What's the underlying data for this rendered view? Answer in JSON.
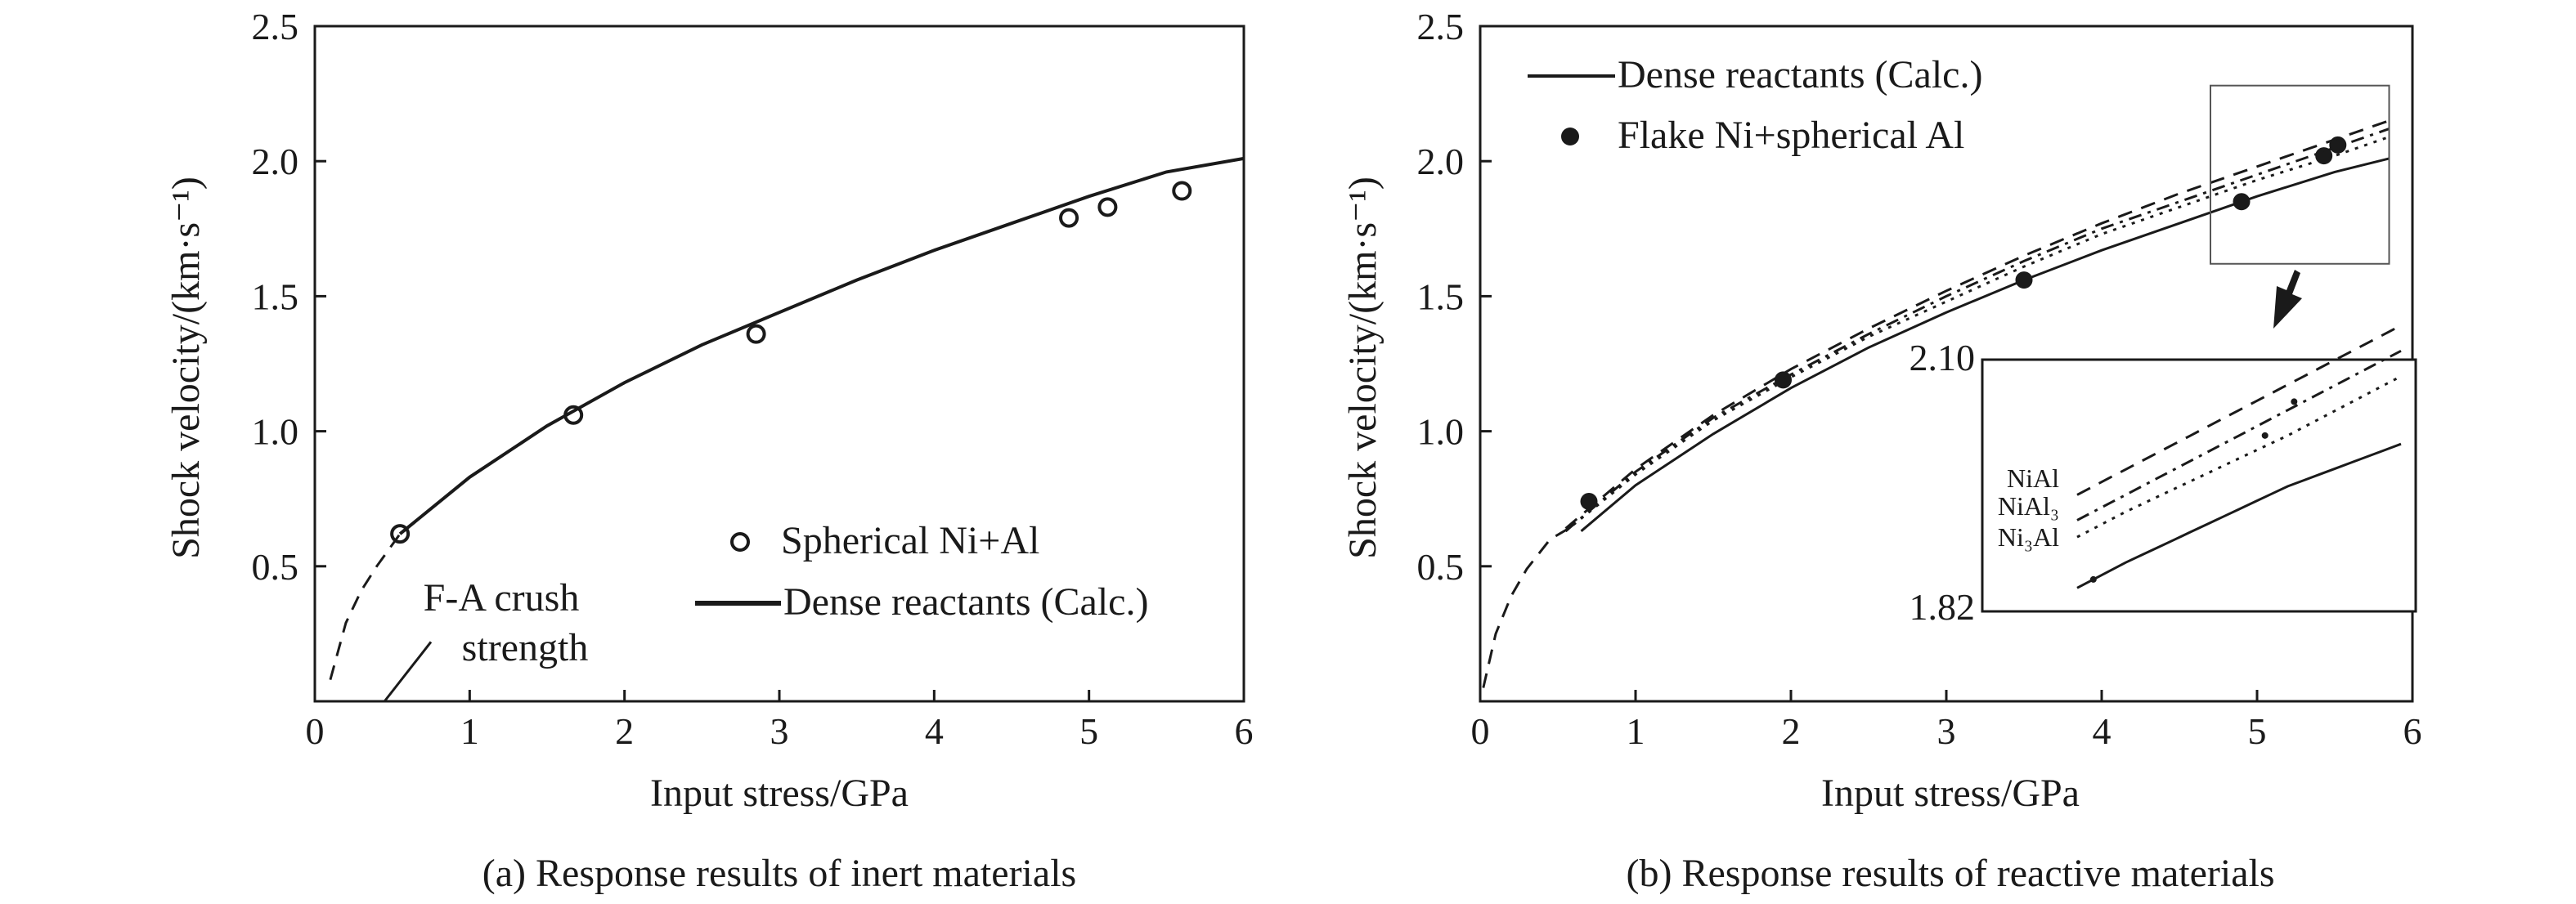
{
  "chart_data": [
    {
      "type": "scatter",
      "panel": "a",
      "caption": "(a) Response results of inert materials",
      "xlabel": "Input stress/GPa",
      "ylabel": "Shock velocity/(km·s⁻¹)",
      "xlim": [
        0,
        6
      ],
      "ylim": [
        0,
        2.5
      ],
      "x_ticks": [
        "0",
        "1",
        "2",
        "3",
        "4",
        "5",
        "6"
      ],
      "y_ticks": [
        "0.5",
        "1.0",
        "1.5",
        "2.0",
        "2.5"
      ],
      "grid": false,
      "legend_position": "bottom-right",
      "series": [
        {
          "name": "Spherical Ni+Al",
          "marker": "open-circle",
          "x": [
            0.55,
            1.67,
            2.85,
            4.87,
            5.12,
            5.6
          ],
          "y": [
            0.62,
            1.06,
            1.36,
            1.79,
            1.83,
            1.89
          ]
        },
        {
          "name": "Dense reactants (Calc.)",
          "style": "solid",
          "x": [
            0.55,
            1.0,
            1.5,
            2.0,
            2.5,
            3.0,
            3.5,
            4.0,
            4.5,
            5.0,
            5.5,
            6.0
          ],
          "y": [
            0.62,
            0.83,
            1.02,
            1.18,
            1.32,
            1.44,
            1.56,
            1.67,
            1.77,
            1.87,
            1.96,
            2.01
          ]
        },
        {
          "style": "dashed",
          "x": [
            0.1,
            0.2,
            0.3,
            0.4,
            0.55
          ],
          "y": [
            0.08,
            0.29,
            0.41,
            0.5,
            0.62
          ]
        }
      ],
      "annotations": [
        {
          "text_lines": [
            "F-A crush",
            "strength"
          ],
          "arrow_from": [
            0.45,
            0.0
          ],
          "arrow_to": [
            0.75,
            0.22
          ]
        }
      ]
    },
    {
      "type": "scatter",
      "panel": "b",
      "caption": "(b) Response results of reactive materials",
      "xlabel": "Input stress/GPa",
      "ylabel": "Shock velocity/(km·s⁻¹)",
      "xlim": [
        0,
        6
      ],
      "ylim": [
        0,
        2.5
      ],
      "x_ticks": [
        "0",
        "1",
        "2",
        "3",
        "4",
        "5",
        "6"
      ],
      "y_ticks": [
        "0.5",
        "1.0",
        "1.5",
        "2.0",
        "2.5"
      ],
      "grid": false,
      "legend_position": "top-left",
      "series": [
        {
          "name": "Dense reactants (Calc.)",
          "style": "solid",
          "x": [
            0.65,
            1.0,
            1.5,
            2.0,
            2.5,
            3.0,
            3.5,
            4.0,
            4.5,
            5.0,
            5.5,
            5.85
          ],
          "y": [
            0.63,
            0.8,
            0.99,
            1.16,
            1.31,
            1.44,
            1.56,
            1.67,
            1.77,
            1.87,
            1.96,
            2.01
          ]
        },
        {
          "name": "Flake Ni+spherical Al",
          "marker": "filled-circle",
          "x": [
            0.7,
            1.95,
            3.5,
            4.9,
            5.43,
            5.52
          ],
          "y": [
            0.74,
            1.19,
            1.56,
            1.85,
            2.02,
            2.06
          ]
        },
        {
          "name": "NiAl",
          "style": "dashed",
          "x": [
            0.55,
            1.0,
            1.5,
            2.0,
            2.5,
            3.0,
            3.5,
            4.0,
            4.5,
            5.0,
            5.5,
            5.85
          ],
          "y": [
            0.64,
            0.86,
            1.06,
            1.23,
            1.38,
            1.52,
            1.65,
            1.77,
            1.88,
            1.98,
            2.08,
            2.15
          ]
        },
        {
          "name": "NiAl₃",
          "style": "dash-dot",
          "x": [
            0.55,
            1.0,
            1.5,
            2.0,
            2.5,
            3.0,
            3.5,
            4.0,
            4.5,
            5.0,
            5.5,
            5.85
          ],
          "y": [
            0.63,
            0.85,
            1.05,
            1.21,
            1.36,
            1.5,
            1.63,
            1.75,
            1.85,
            1.95,
            2.05,
            2.12
          ]
        },
        {
          "name": "Ni₃Al",
          "style": "dotted",
          "x": [
            0.55,
            1.0,
            1.5,
            2.0,
            2.5,
            3.0,
            3.5,
            4.0,
            4.5,
            5.0,
            5.5,
            5.85
          ],
          "y": [
            0.63,
            0.84,
            1.04,
            1.2,
            1.35,
            1.48,
            1.61,
            1.73,
            1.83,
            1.93,
            2.02,
            2.09
          ]
        },
        {
          "style": "dashed",
          "x": [
            0.02,
            0.1,
            0.2,
            0.3,
            0.45,
            0.6
          ],
          "y": [
            0.05,
            0.25,
            0.39,
            0.49,
            0.6,
            0.65
          ]
        }
      ],
      "zoom_box": {
        "xlim": [
          4.7,
          5.85
        ],
        "ylim": [
          1.62,
          2.28
        ]
      },
      "inset": {
        "ylim": [
          1.82,
          2.1
        ],
        "y_tick_labels": [
          "2.10",
          "1.82"
        ],
        "labels": [
          "NiAl",
          "NiAl₃",
          "Ni₃Al"
        ]
      }
    }
  ]
}
